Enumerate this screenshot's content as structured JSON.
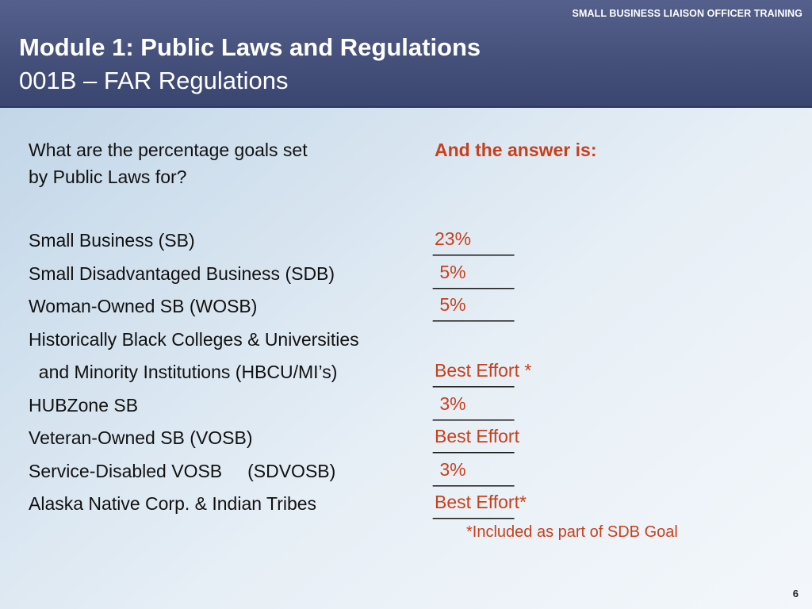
{
  "header": {
    "program_label": "SMALL BUSINESS LIAISON OFFICER TRAINING",
    "title": "Module 1: Public Laws and Regulations",
    "subtitle": "001B – FAR Regulations"
  },
  "question": {
    "line1": "What are the percentage goals set",
    "line2": "by Public Laws for?"
  },
  "answer_heading": "And the answer is:",
  "categories": [
    "Small Business (SB)",
    "Small Disadvantaged Business (SDB)",
    "Woman-Owned SB (WOSB)",
    "Historically Black Colleges & Universities",
    "  and Minority Institutions (HBCU/MI’s)",
    "HUBZone SB",
    "Veteran-Owned SB (VOSB)",
    "Service-Disabled VOSB     (SDVOSB)",
    "Alaska Native Corp. & Indian Tribes"
  ],
  "blank_line": "________",
  "answers": [
    "23%",
    " 5%",
    " 5%",
    "Best Effort *",
    " 3%",
    "Best Effort",
    " 3%",
    "Best Effort*"
  ],
  "footnote": "*Included as part of SDB Goal",
  "page_number": "6"
}
